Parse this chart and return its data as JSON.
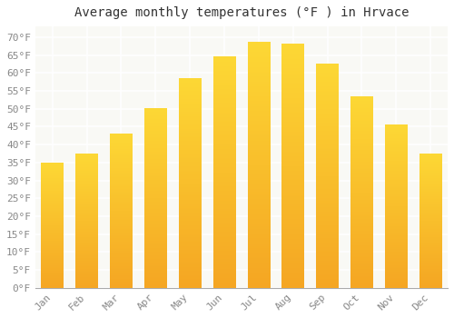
{
  "title": "Average monthly temperatures (°F ) in Hrvace",
  "months": [
    "Jan",
    "Feb",
    "Mar",
    "Apr",
    "May",
    "Jun",
    "Jul",
    "Aug",
    "Sep",
    "Oct",
    "Nov",
    "Dec"
  ],
  "values": [
    35,
    37.5,
    43,
    50,
    58.5,
    64.5,
    68.5,
    68,
    62.5,
    53.5,
    45.5,
    37.5
  ],
  "bar_color_bottom": "#F5A623",
  "bar_color_top": "#FDD835",
  "ylim": [
    0,
    73
  ],
  "yticks": [
    0,
    5,
    10,
    15,
    20,
    25,
    30,
    35,
    40,
    45,
    50,
    55,
    60,
    65,
    70
  ],
  "ytick_labels": [
    "0°F",
    "5°F",
    "10°F",
    "15°F",
    "20°F",
    "25°F",
    "30°F",
    "35°F",
    "40°F",
    "45°F",
    "50°F",
    "55°F",
    "60°F",
    "65°F",
    "70°F"
  ],
  "background_color": "#ffffff",
  "plot_bg_color": "#f9f9f5",
  "grid_color": "#ffffff",
  "title_fontsize": 10,
  "tick_fontsize": 8,
  "bar_width": 0.65,
  "spine_color": "#aaaaaa"
}
